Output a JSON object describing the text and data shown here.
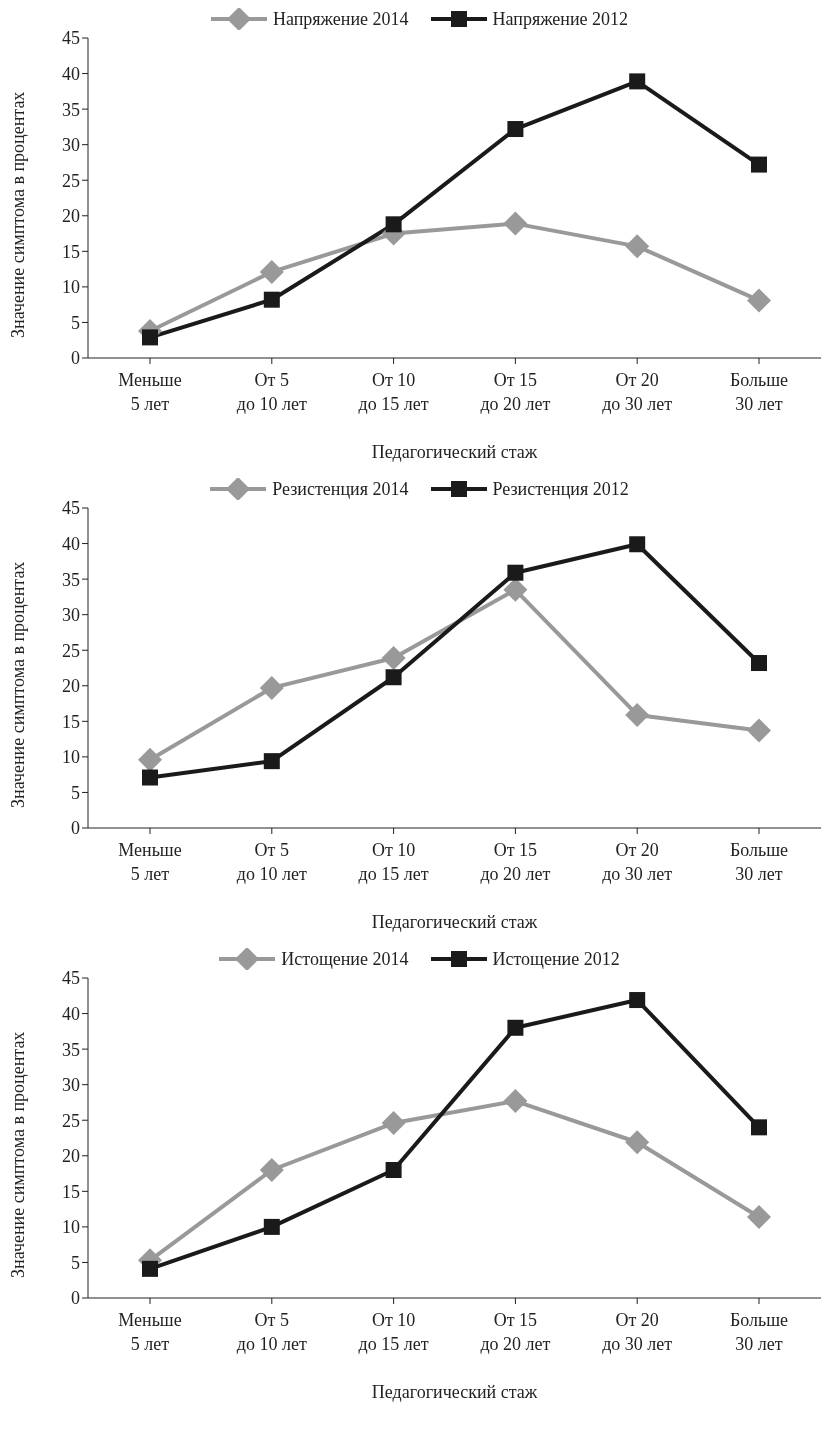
{
  "chart_data": [
    {
      "type": "line",
      "categories": [
        "Меньше\n5 лет",
        "От 5\nдо 10 лет",
        "От 10\nдо 15 лет",
        "От 15\nдо 20 лет",
        "От 20\nдо 30 лет",
        "Больше\n30 лет"
      ],
      "xlabel": "Педагогический стаж",
      "ylabel": "Значение симптома в процентах",
      "ylim": [
        0,
        45
      ],
      "yticks": [
        0,
        5,
        10,
        15,
        20,
        25,
        30,
        35,
        40,
        45
      ],
      "grid": false,
      "legend": "top",
      "line_style": "solid",
      "series": [
        {
          "name": "Напряжение 2014",
          "color": "#999999",
          "marker": "diamond",
          "values": [
            3.8,
            12.1,
            17.5,
            18.9,
            15.7,
            8.1
          ]
        },
        {
          "name": "Напряжение 2012",
          "color": "#1a1a1a",
          "marker": "square",
          "values": [
            2.9,
            8.2,
            18.8,
            32.2,
            38.9,
            27.2
          ]
        }
      ]
    },
    {
      "type": "line",
      "categories": [
        "Меньше\n5 лет",
        "От 5\nдо 10 лет",
        "От 10\nдо 15 лет",
        "От 15\nдо 20 лет",
        "От 20\nдо 30 лет",
        "Больше\n30 лет"
      ],
      "xlabel": "Педагогический стаж",
      "ylabel": "Значение симптома в процентах",
      "ylim": [
        0,
        45
      ],
      "yticks": [
        0,
        5,
        10,
        15,
        20,
        25,
        30,
        35,
        40,
        45
      ],
      "grid": false,
      "legend": "top",
      "line_style": "solid",
      "series": [
        {
          "name": "Резистенция 2014",
          "color": "#999999",
          "marker": "diamond",
          "values": [
            9.6,
            19.7,
            23.9,
            33.5,
            15.9,
            13.7
          ]
        },
        {
          "name": "Резистенция 2012",
          "color": "#1a1a1a",
          "marker": "square",
          "values": [
            7.1,
            9.4,
            21.2,
            35.9,
            39.9,
            23.2
          ]
        }
      ]
    },
    {
      "type": "line",
      "categories": [
        "Меньше\n5 лет",
        "От 5\nдо 10 лет",
        "От 10\nдо 15 лет",
        "От 15\nдо 20 лет",
        "От 20\nдо 30 лет",
        "Больше\n30 лет"
      ],
      "xlabel": "Педагогический стаж",
      "ylabel": "Значение симптома в процентах",
      "ylim": [
        0,
        45
      ],
      "yticks": [
        0,
        5,
        10,
        15,
        20,
        25,
        30,
        35,
        40,
        45
      ],
      "grid": false,
      "legend": "top",
      "line_style": "solid",
      "series": [
        {
          "name": "Истощение 2014",
          "color": "#999999",
          "marker": "diamond",
          "values": [
            5.3,
            18.0,
            24.6,
            27.7,
            21.9,
            11.4
          ]
        },
        {
          "name": "Истощение 2012",
          "color": "#1a1a1a",
          "marker": "square",
          "values": [
            4.1,
            10.0,
            18.0,
            38.0,
            41.9,
            24.0
          ]
        }
      ]
    }
  ]
}
